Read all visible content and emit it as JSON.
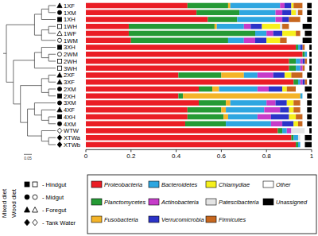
{
  "chart_data": {
    "type": "bar",
    "orientation": "horizontal",
    "stacked": true,
    "legend": "bottom right",
    "categories": [
      "1XF",
      "1XM",
      "1XH",
      "1WH",
      "1WF",
      "1WM",
      "3XH",
      "2WM",
      "2WH",
      "3WH",
      "2XF",
      "3XF",
      "2XM",
      "2XH",
      "3XM",
      "4XF",
      "4XH",
      "4XM",
      "WTW",
      "XTWa",
      "XTWb"
    ],
    "xlim": [
      0,
      1
    ],
    "xticks": [
      0,
      0.2,
      0.4,
      0.6,
      0.8,
      1
    ],
    "series": [
      {
        "name": "Proteobacteria",
        "color": "#ea1d25",
        "values": [
          0.45,
          0.49,
          0.54,
          0.19,
          0.19,
          0.2,
          0.93,
          0.96,
          0.9,
          0.9,
          0.41,
          0.92,
          0.5,
          0.41,
          0.5,
          0.45,
          0.45,
          0.44,
          0.85,
          0.91,
          0.93
        ]
      },
      {
        "name": "Planctomycetes",
        "color": "#259a35",
        "values": [
          0.18,
          0.19,
          0.13,
          0.38,
          0.56,
          0.43,
          0.01,
          0.01,
          0.03,
          0.03,
          0.19,
          0.02,
          0.06,
          0.02,
          0.12,
          0.15,
          0.16,
          0.18,
          0.02,
          0.01,
          0.01
        ]
      },
      {
        "name": "Fusobacteria",
        "color": "#f4b429",
        "values": [
          0.01,
          0,
          0,
          0.01,
          0,
          0,
          0,
          0,
          0,
          0,
          0.1,
          0,
          0.03,
          0.52,
          0.02,
          0.02,
          0.02,
          0,
          0,
          0,
          0
        ]
      },
      {
        "name": "Bacteroidetes",
        "color": "#2ea6e0",
        "values": [
          0.22,
          0.16,
          0.17,
          0.12,
          0.05,
          0.07,
          0.01,
          0.01,
          0.02,
          0.02,
          0.06,
          0.01,
          0.17,
          0.01,
          0.16,
          0.17,
          0.13,
          0.2,
          0.02,
          0.02,
          0.01
        ]
      },
      {
        "name": "Actinobacteria",
        "color": "#c63cc9",
        "values": [
          0.02,
          0.03,
          0.03,
          0.03,
          0.03,
          0.05,
          0,
          0,
          0.01,
          0.01,
          0.07,
          0.01,
          0.05,
          0,
          0.04,
          0.07,
          0.06,
          0.05,
          0.02,
          0,
          0
        ]
      },
      {
        "name": "Verrucomicrobia",
        "color": "#2b33c8",
        "values": [
          0.03,
          0.04,
          0.03,
          0.05,
          0.04,
          0.05,
          0.01,
          0,
          0.01,
          0,
          0.05,
          0.01,
          0.06,
          0,
          0.05,
          0.04,
          0.08,
          0.05,
          0,
          0,
          0
        ]
      },
      {
        "name": "Chlamydiae",
        "color": "#f6f01d",
        "values": [
          0.01,
          0.02,
          0,
          0.08,
          0.06,
          0.06,
          0,
          0,
          0,
          0,
          0.03,
          0,
          0.02,
          0,
          0.03,
          0.02,
          0.03,
          0.02,
          0,
          0,
          0
        ]
      },
      {
        "name": "Patescibacteria",
        "color": "#e4e4e4",
        "values": [
          0,
          0.01,
          0,
          0.01,
          0,
          0,
          0,
          0,
          0,
          0,
          0,
          0,
          0,
          0,
          0,
          0,
          0,
          0,
          0.06,
          0.01,
          0
        ]
      },
      {
        "name": "Firmicutes",
        "color": "#c7671e",
        "values": [
          0.04,
          0.02,
          0.05,
          0.03,
          0.02,
          0.03,
          0.01,
          0,
          0.01,
          0.01,
          0.05,
          0.01,
          0.04,
          0,
          0.03,
          0.03,
          0.03,
          0.02,
          0,
          0,
          0
        ]
      },
      {
        "name": "Other",
        "color": "#ffffff",
        "values": [
          0.02,
          0.02,
          0.03,
          0.06,
          0.02,
          0.07,
          0.02,
          0.01,
          0.01,
          0.02,
          0.02,
          0.01,
          0.04,
          0.02,
          0.03,
          0.03,
          0.02,
          0.02,
          0.02,
          0.02,
          0.02
        ]
      },
      {
        "name": "Unassigned",
        "color": "#000000",
        "values": [
          0.02,
          0.02,
          0.02,
          0.04,
          0.03,
          0.04,
          0.01,
          0.01,
          0.01,
          0.01,
          0.02,
          0.01,
          0.03,
          0.02,
          0.02,
          0.02,
          0.02,
          0.02,
          0.01,
          0.03,
          0.03
        ]
      }
    ],
    "sample_key": {
      "groups": [
        "Mixed diet",
        "Wood diet"
      ],
      "sites": [
        "- Hindgut",
        "- Midgut",
        "- Foregut",
        "- Tank Water"
      ]
    },
    "dendrogram": {
      "tree": [
        [
          [
            [
              0,
              1
            ],
            2
          ],
          [
            [
              3,
              4
            ],
            5
          ]
        ],
        [
          [
            [
              6,
              [
                7,
                8
              ]
            ],
            9
          ],
          [
            [
              [
                10,
                11
              ],
              [
                12,
                13
              ]
            ],
            [
              [
                14,
                [
                  15,
                  [
                    16,
                    17
                  ]
                ]
              ],
              [
                18,
                [
                  19,
                  20
                ]
              ]
            ]
          ]
        ]
      ],
      "scale_label": 0.05
    }
  }
}
